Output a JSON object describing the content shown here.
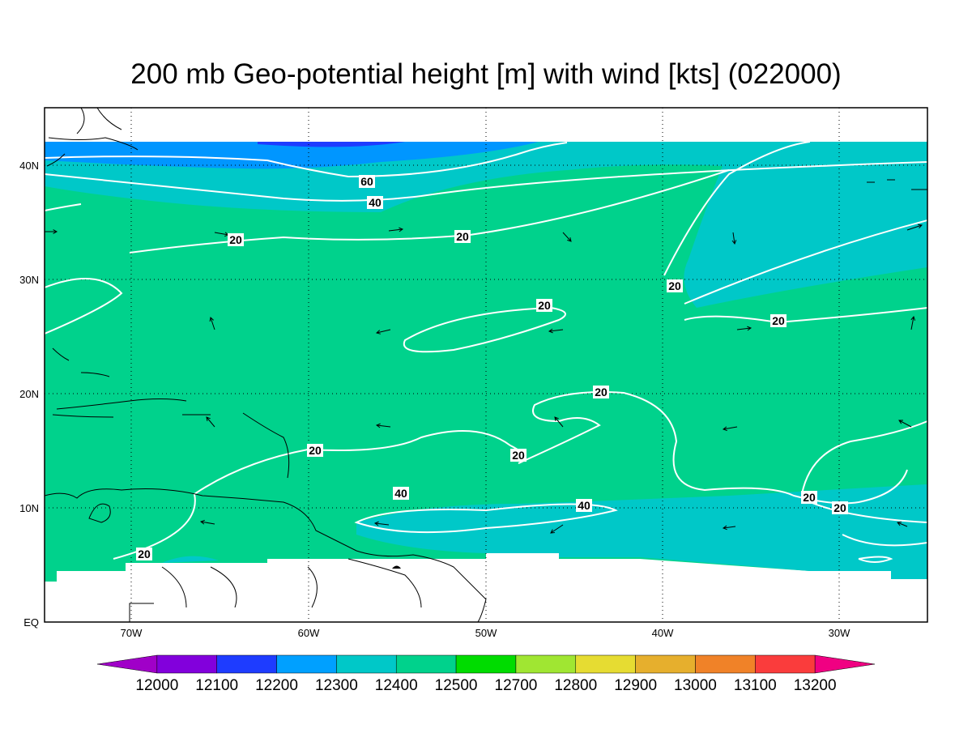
{
  "title": "200 mb Geo-potential height [m] with wind [kts] (022000)",
  "map": {
    "lon_labels": [
      "70W",
      "60W",
      "50W",
      "40W",
      "30W"
    ],
    "lat_labels": [
      "EQ",
      "10N",
      "20N",
      "30N",
      "40N"
    ],
    "contour_labels": [
      "60",
      "40",
      "20",
      "20",
      "20",
      "20",
      "20",
      "20",
      "20",
      "20",
      "40",
      "40",
      "20",
      "20",
      "20"
    ]
  },
  "colorbar": {
    "colors": [
      "#a000c8",
      "#8200dc",
      "#1e3cff",
      "#00a0ff",
      "#00c8c8",
      "#00d28c",
      "#00dc00",
      "#a0e632",
      "#e6dc32",
      "#e6af2d",
      "#f08228",
      "#fa3c3c",
      "#f00082"
    ],
    "labels": [
      "12000",
      "12100",
      "12200",
      "12300",
      "12400",
      "12500",
      "12700",
      "12800",
      "12900",
      "13000",
      "13100",
      "13200"
    ]
  }
}
